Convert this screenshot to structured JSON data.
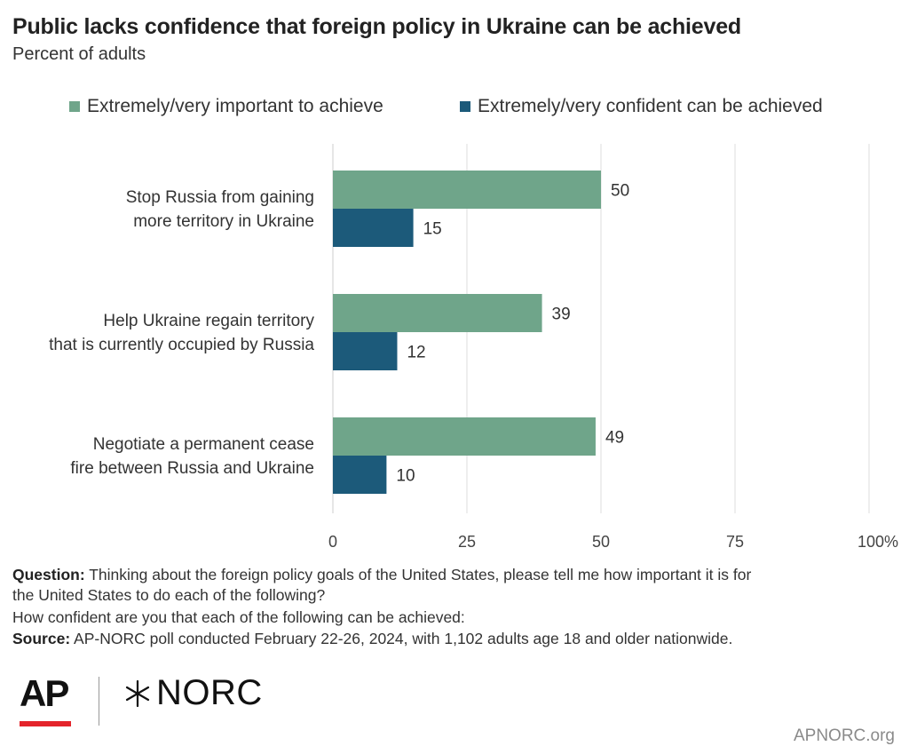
{
  "title": "Public lacks confidence that foreign policy in Ukraine can be achieved",
  "subtitle": "Percent of adults",
  "colors": {
    "important": "#6fa58a",
    "confident": "#1c5a7a",
    "grid": "#dddddd",
    "axis": "#cccccc"
  },
  "chart_data": {
    "type": "bar",
    "orientation": "horizontal",
    "categories": [
      [
        "Stop Russia from gaining",
        "more territory in Ukraine"
      ],
      [
        "Help Ukraine regain territory",
        "that is currently occupied by Russia"
      ],
      [
        "Negotiate a permanent cease",
        "fire between Russia and Ukraine"
      ]
    ],
    "series": [
      {
        "name": "Extremely/very important to achieve",
        "values": [
          50,
          39,
          49
        ]
      },
      {
        "name": "Extremely/very confident can be achieved",
        "values": [
          15,
          12,
          10
        ]
      }
    ],
    "xlim": [
      0,
      100
    ],
    "ticks": [
      0,
      25,
      50,
      75,
      100
    ],
    "tick_labels": [
      "0",
      "25",
      "50",
      "75",
      "100%"
    ],
    "grid": true,
    "legend_position": "top"
  },
  "footer": {
    "question_label": "Question:",
    "question_line1": " Thinking about the foreign policy goals of the United States, please tell me how important it is for",
    "question_line2": "the United States to do each of the following?",
    "question_line3": "How confident are you that each of the following can be achieved:",
    "source_label": "Source:",
    "source_text": " AP-NORC poll conducted February 22-26, 2024, with 1,102 adults age 18 and older nationwide."
  },
  "logos": {
    "ap": "AP",
    "norc": "NORC",
    "norc_icon": "star-cross-icon"
  },
  "site_url": "APNORC.org"
}
